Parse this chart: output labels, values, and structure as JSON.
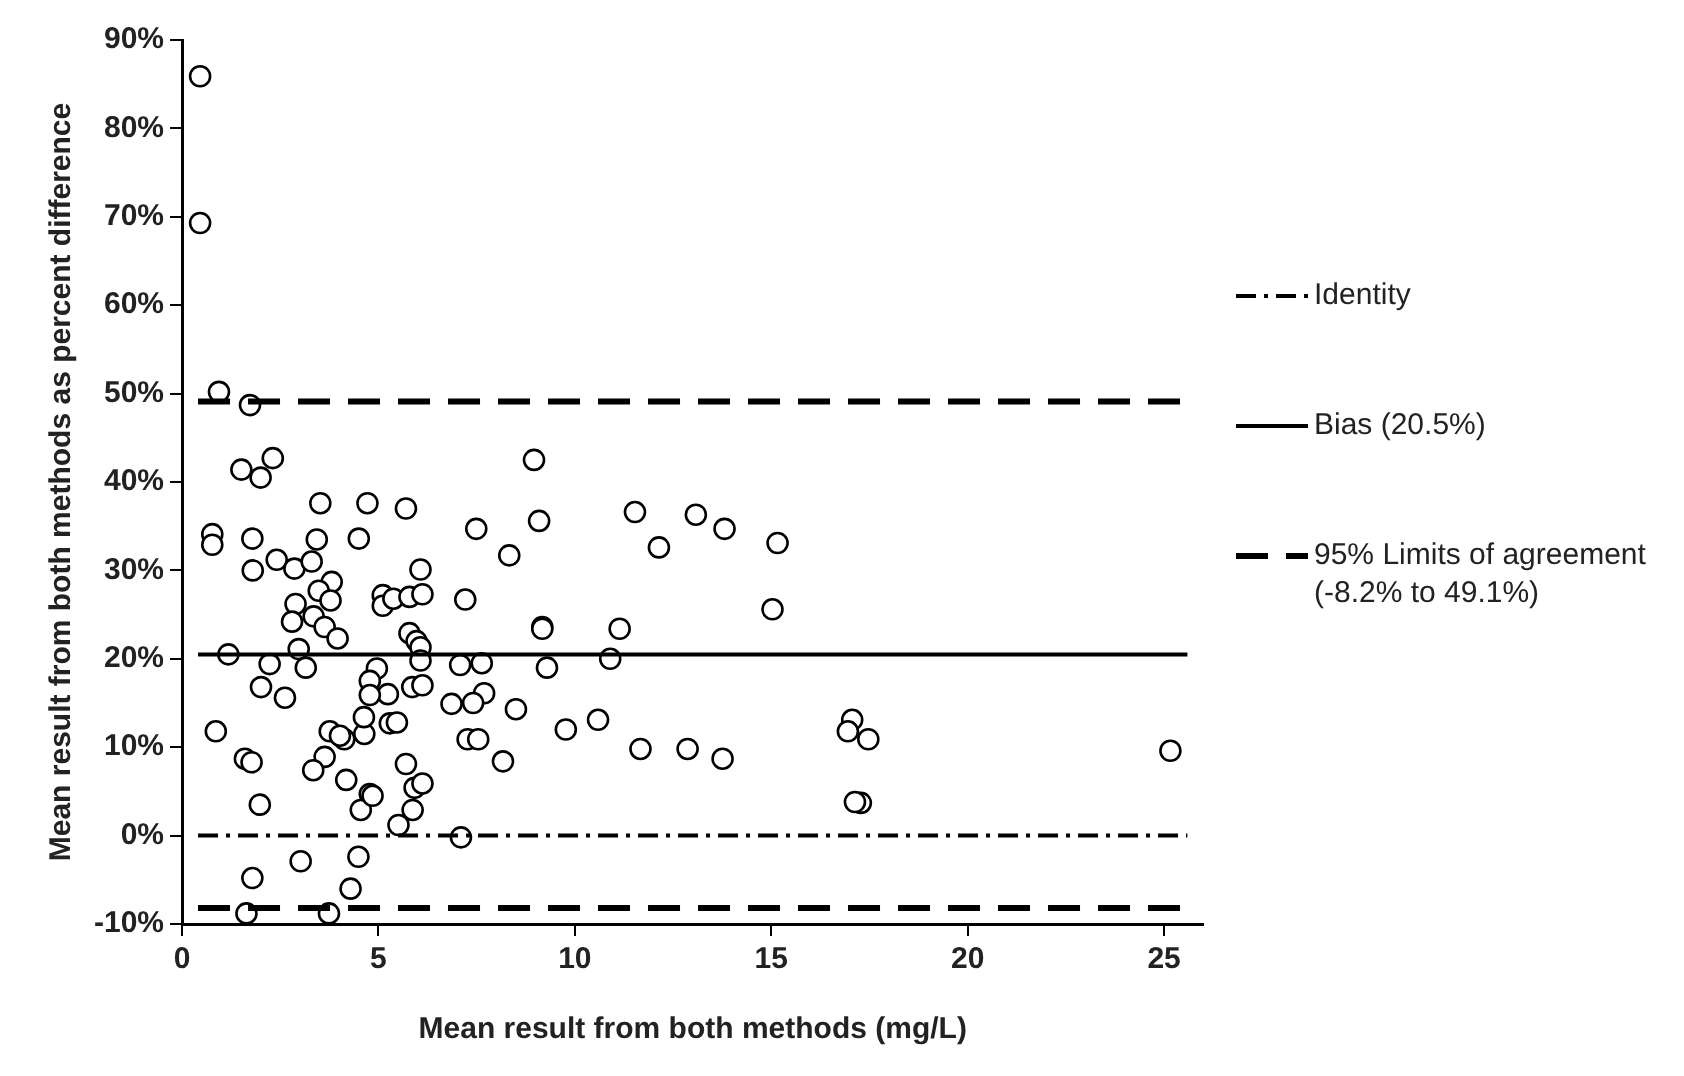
{
  "chart_data": {
    "type": "scatter",
    "xlabel": "Mean result from both methods (mg/L)",
    "ylabel": "Mean result from both methods as percent difference",
    "xlim": [
      0,
      26
    ],
    "xticks": [
      0,
      5,
      10,
      15,
      20,
      25
    ],
    "ylim": [
      -10,
      90
    ],
    "yticks": [
      {
        "value": -10,
        "label": "-10%"
      },
      {
        "value": 0,
        "label": "0%"
      },
      {
        "value": 10,
        "label": "10%"
      },
      {
        "value": 20,
        "label": "20%"
      },
      {
        "value": 30,
        "label": "30%"
      },
      {
        "value": 40,
        "label": "40%"
      },
      {
        "value": 50,
        "label": "50%"
      },
      {
        "value": 60,
        "label": "60%"
      },
      {
        "value": 70,
        "label": "70%"
      },
      {
        "value": 80,
        "label": "80%"
      },
      {
        "value": 90,
        "label": "90%"
      }
    ],
    "grid": false,
    "legend": "right",
    "marker": "circle",
    "series": [
      {
        "color": "#000000",
        "x": [
          0.46,
          0.46,
          0.94,
          1.73,
          2.31,
          1.51,
          2.0,
          3.52,
          4.72,
          5.7,
          0.77,
          0.77,
          1.79,
          3.43,
          4.5,
          1.8,
          2.41,
          2.86,
          3.3,
          3.81,
          3.48,
          3.78,
          2.89,
          2.8,
          3.35,
          3.63,
          3.96,
          2.97,
          1.18,
          2.23,
          3.15,
          4.96,
          4.78,
          2.01,
          2.62,
          5.24,
          4.78,
          0.86,
          3.76,
          4.13,
          4.02,
          4.64,
          5.29,
          5.47,
          1.6,
          1.77,
          3.63,
          3.34,
          4.18,
          4.78,
          5.7,
          1.79,
          3.02,
          4.49,
          4.29,
          1.64,
          3.74,
          4.55,
          5.87,
          5.51,
          7.1,
          1.98,
          4.85,
          17.28,
          8.96,
          11.53,
          13.08,
          13.81,
          7.49,
          9.09,
          15.16,
          8.33,
          12.14,
          6.07,
          5.11,
          5.11,
          5.38,
          5.79,
          6.12,
          7.21,
          15.03,
          9.17,
          9.17,
          11.14,
          5.79,
          5.97,
          6.07,
          6.07,
          10.9,
          9.29,
          7.08,
          7.63,
          5.86,
          6.12,
          7.69,
          6.86,
          7.41,
          8.5,
          4.63,
          7.27,
          7.54,
          9.77,
          10.59,
          11.67,
          12.87,
          13.76,
          8.17,
          5.92,
          6.12,
          17.06,
          16.95,
          17.47,
          17.13,
          25.16
        ],
        "values": [
          85.9,
          69.3,
          50.2,
          48.7,
          42.7,
          41.4,
          40.5,
          37.6,
          37.6,
          37.0,
          34.1,
          32.9,
          33.6,
          33.5,
          33.6,
          30.0,
          31.2,
          30.2,
          31.0,
          28.7,
          27.7,
          26.6,
          26.2,
          24.2,
          24.8,
          23.6,
          22.3,
          21.1,
          20.5,
          19.4,
          19.0,
          18.9,
          17.5,
          16.8,
          15.6,
          16.0,
          15.9,
          11.8,
          11.8,
          10.9,
          11.3,
          11.5,
          12.7,
          12.8,
          8.7,
          8.3,
          8.9,
          7.4,
          6.3,
          4.7,
          8.1,
          -4.8,
          -2.9,
          -2.4,
          -6.0,
          -8.8,
          -8.8,
          2.9,
          2.9,
          1.2,
          -0.2,
          3.5,
          4.5,
          3.7,
          42.5,
          36.6,
          36.3,
          34.7,
          34.7,
          35.6,
          33.1,
          31.7,
          32.6,
          30.1,
          27.2,
          26.0,
          26.8,
          27.0,
          27.3,
          26.7,
          25.6,
          23.6,
          23.4,
          23.4,
          22.9,
          22.0,
          21.3,
          19.8,
          20.0,
          19.0,
          19.3,
          19.5,
          16.8,
          17.0,
          16.1,
          14.9,
          15.0,
          14.3,
          13.4,
          10.9,
          10.9,
          12.0,
          13.1,
          9.8,
          9.8,
          8.7,
          8.4,
          5.4,
          5.9,
          13.1,
          11.8,
          10.9,
          3.8,
          9.6
        ]
      }
    ],
    "ref_lines": [
      {
        "axis": "y",
        "value": 0,
        "label": "Identity",
        "line_style": "dashdot",
        "color": "#000000"
      },
      {
        "axis": "y",
        "value": 20.5,
        "label": "Bias (20.5%)",
        "line_style": "solid",
        "color": "#000000"
      },
      {
        "axis": "y",
        "value": -8.2,
        "label": "95% Limits of agreement (-8.2% to 49.1%)",
        "line_style": "dashed",
        "color": "#000000"
      },
      {
        "axis": "y",
        "value": 49.1,
        "label": null,
        "line_style": "dashed",
        "color": "#000000"
      }
    ]
  }
}
